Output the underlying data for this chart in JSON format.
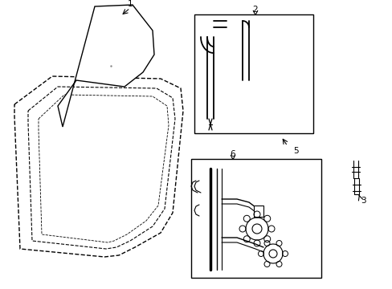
{
  "bg_color": "#ffffff",
  "line_color": "#000000",
  "dash_color": "#000000",
  "fig_width": 4.89,
  "fig_height": 3.6,
  "dpi": 100
}
